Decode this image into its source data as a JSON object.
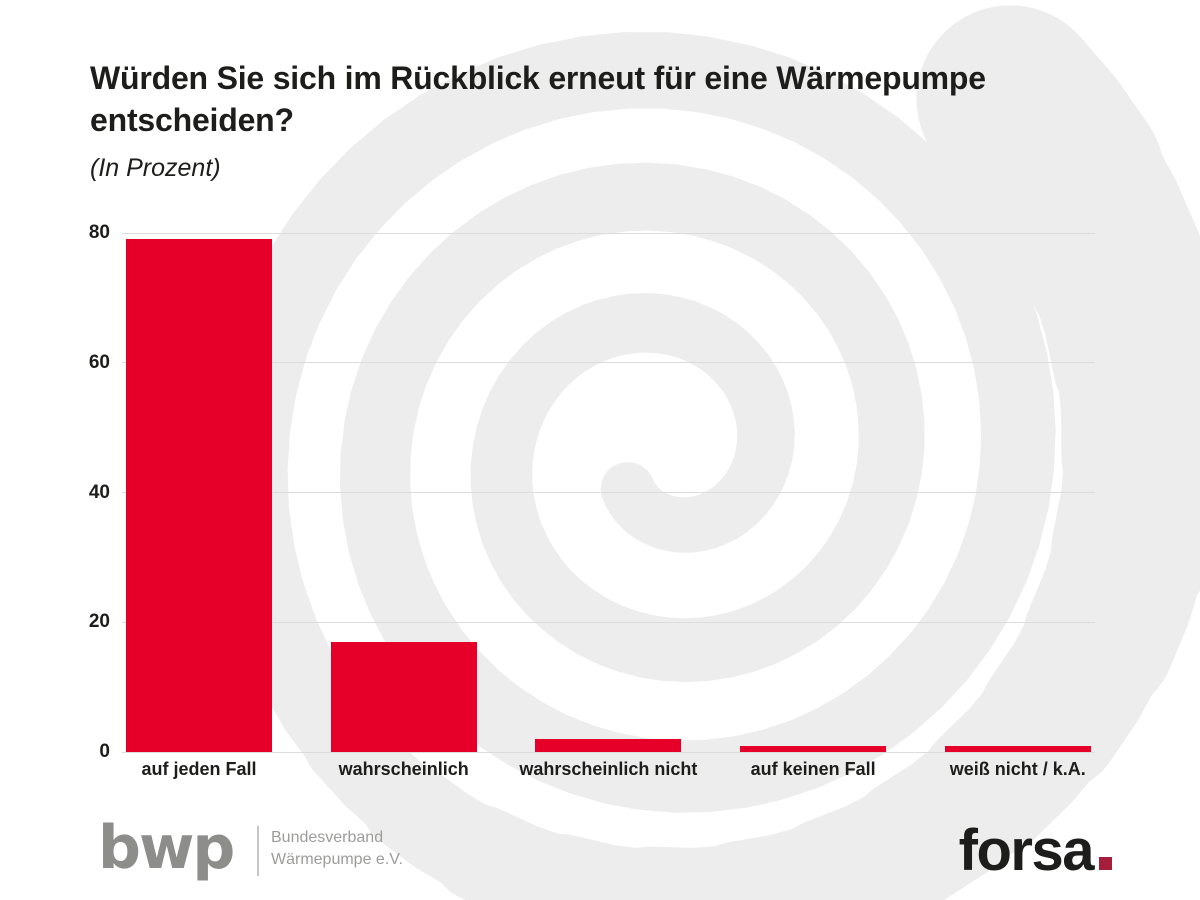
{
  "header": {
    "title_lines": [
      "Würden Sie sich im Rückblick erneut für eine Wärmepumpe",
      "entscheiden?"
    ],
    "subtitle": "(In Prozent)"
  },
  "chart_data": {
    "type": "bar",
    "title": "Würden Sie sich im Rückblick erneut für eine Wärmepumpe entscheiden?",
    "units": "Prozent",
    "categories": [
      "auf jeden Fall",
      "wahrscheinlich",
      "wahrscheinlich nicht",
      "auf keinen Fall",
      "weiß nicht / k.A."
    ],
    "values": [
      79,
      17,
      2,
      1,
      1
    ],
    "yticks": [
      0,
      20,
      40,
      60,
      80
    ],
    "ylim": [
      0,
      80
    ],
    "grid": true,
    "legend": "none",
    "xlabel": "",
    "ylabel": ""
  },
  "footer": {
    "bwp_logo_text": "bwp",
    "bwp_org_lines": [
      "Bundesverband",
      "Wärmepumpe e.V."
    ],
    "forsa_logo_text": "forsa"
  },
  "colors": {
    "bar_red": "#e60029",
    "forsa_dot_red": "#a51e3c",
    "watermark_gray": "#ededed",
    "gridline_gray": "#dcdcdc",
    "text_dark": "#1d1d1b",
    "bwp_gray": "#8d8d8c",
    "bwp_text_gray": "#9c9c9b"
  }
}
